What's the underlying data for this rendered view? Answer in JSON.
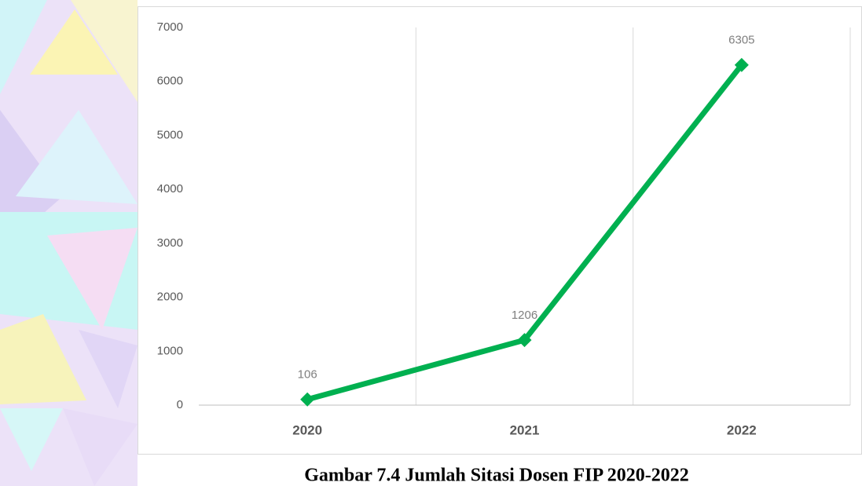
{
  "chart_data": {
    "type": "line",
    "caption": "Gambar 7.4 Jumlah Sitasi Dosen FIP 2020-2022",
    "categories": [
      "2020",
      "2021",
      "2022"
    ],
    "values": [
      106,
      1206,
      6305
    ],
    "color": "#00b050",
    "ylim": [
      0,
      7000
    ],
    "yticks": [
      0,
      1000,
      2000,
      3000,
      4000,
      5000,
      6000,
      7000
    ],
    "grid": false
  }
}
